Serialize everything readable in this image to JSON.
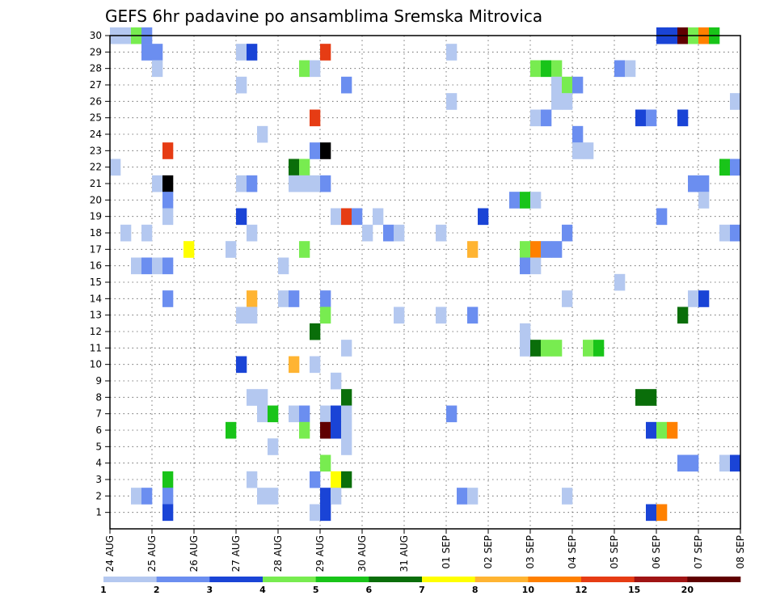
{
  "chart_data": {
    "type": "heatmap",
    "title": "GEFS 6hr padavine po ansamblima Sremska Mitrovica",
    "xlabel": "",
    "ylabel": "",
    "x_ticks": [
      "24 AUG",
      "25 AUG",
      "26 AUG",
      "27 AUG",
      "28 AUG",
      "29 AUG",
      "30 AUG",
      "31 AUG",
      "01 SEP",
      "02 SEP",
      "03 SEP",
      "04 SEP",
      "05 SEP",
      "06 SEP",
      "07 SEP",
      "08 SEP"
    ],
    "y_ticks": [
      1,
      2,
      3,
      4,
      5,
      6,
      7,
      8,
      9,
      10,
      11,
      12,
      13,
      14,
      15,
      16,
      17,
      18,
      19,
      20,
      21,
      22,
      23,
      24,
      25,
      26,
      27,
      28,
      29,
      30
    ],
    "x_range": [
      0,
      60
    ],
    "y_range": [
      0,
      30
    ],
    "grid": true,
    "legend_placement": "bottom",
    "legend": {
      "levels": [
        1,
        2,
        3,
        4,
        5,
        6,
        7,
        8,
        10,
        12,
        15,
        20
      ],
      "colors": [
        "#b4c8f0",
        "#6b8ef0",
        "#1a44d6",
        "#78ec50",
        "#19c419",
        "#0a6e0a",
        "#ffff00",
        "#ffb432",
        "#ff8000",
        "#e63c14",
        "#a01414",
        "#600000"
      ]
    },
    "points": [
      [
        0,
        1,
        30
      ],
      [
        1,
        1,
        30
      ],
      [
        2,
        4,
        30
      ],
      [
        3,
        2,
        30
      ],
      [
        52,
        3,
        30
      ],
      [
        53,
        3,
        30
      ],
      [
        54,
        12,
        30
      ],
      [
        55,
        4,
        30
      ],
      [
        56,
        9,
        30
      ],
      [
        57,
        5,
        30
      ],
      [
        3,
        2,
        29
      ],
      [
        4,
        2,
        29
      ],
      [
        12,
        1,
        29
      ],
      [
        13,
        3,
        29
      ],
      [
        20,
        10,
        29
      ],
      [
        32,
        1,
        29
      ],
      [
        4,
        1,
        28
      ],
      [
        18,
        4,
        28
      ],
      [
        19,
        1,
        28
      ],
      [
        40,
        4,
        28
      ],
      [
        41,
        5,
        28
      ],
      [
        42,
        4,
        28
      ],
      [
        48,
        2,
        28
      ],
      [
        49,
        1,
        28
      ],
      [
        12,
        1,
        27
      ],
      [
        22,
        2,
        27
      ],
      [
        42,
        1,
        27
      ],
      [
        43,
        4,
        27
      ],
      [
        44,
        2,
        27
      ],
      [
        32,
        1,
        26
      ],
      [
        42,
        1,
        26
      ],
      [
        43,
        1,
        26
      ],
      [
        59,
        1,
        26
      ],
      [
        19,
        10,
        25
      ],
      [
        40,
        1,
        25
      ],
      [
        41,
        2,
        25
      ],
      [
        50,
        3,
        25
      ],
      [
        51,
        2,
        25
      ],
      [
        54,
        3,
        25
      ],
      [
        14,
        1,
        24
      ],
      [
        44,
        2,
        24
      ],
      [
        5,
        10,
        23
      ],
      [
        19,
        2,
        23
      ],
      [
        20,
        14,
        23
      ],
      [
        44,
        1,
        23
      ],
      [
        45,
        1,
        23
      ],
      [
        0,
        1,
        22
      ],
      [
        17,
        6,
        22
      ],
      [
        18,
        4,
        22
      ],
      [
        58,
        5,
        22
      ],
      [
        59,
        2,
        22
      ],
      [
        4,
        1,
        21
      ],
      [
        5,
        14,
        21
      ],
      [
        12,
        1,
        21
      ],
      [
        13,
        2,
        21
      ],
      [
        17,
        1,
        21
      ],
      [
        18,
        1,
        21
      ],
      [
        19,
        1,
        21
      ],
      [
        20,
        2,
        21
      ],
      [
        55,
        2,
        21
      ],
      [
        56,
        2,
        21
      ],
      [
        5,
        2,
        20
      ],
      [
        38,
        2,
        20
      ],
      [
        39,
        5,
        20
      ],
      [
        40,
        1,
        20
      ],
      [
        56,
        1,
        20
      ],
      [
        5,
        1,
        19
      ],
      [
        12,
        3,
        19
      ],
      [
        21,
        1,
        19
      ],
      [
        22,
        10,
        19
      ],
      [
        23,
        2,
        19
      ],
      [
        25,
        1,
        19
      ],
      [
        35,
        3,
        19
      ],
      [
        52,
        2,
        19
      ],
      [
        1,
        1,
        18
      ],
      [
        3,
        1,
        18
      ],
      [
        13,
        1,
        18
      ],
      [
        24,
        1,
        18
      ],
      [
        26,
        2,
        18
      ],
      [
        27,
        1,
        18
      ],
      [
        31,
        1,
        18
      ],
      [
        43,
        2,
        18
      ],
      [
        58,
        1,
        18
      ],
      [
        59,
        2,
        18
      ],
      [
        7,
        7,
        17
      ],
      [
        11,
        1,
        17
      ],
      [
        18,
        4,
        17
      ],
      [
        34,
        8,
        17
      ],
      [
        39,
        4,
        17
      ],
      [
        40,
        9,
        17
      ],
      [
        41,
        2,
        17
      ],
      [
        42,
        2,
        17
      ],
      [
        2,
        1,
        16
      ],
      [
        3,
        2,
        16
      ],
      [
        4,
        1,
        16
      ],
      [
        5,
        2,
        16
      ],
      [
        16,
        1,
        16
      ],
      [
        39,
        2,
        16
      ],
      [
        40,
        1,
        16
      ],
      [
        48,
        1,
        15
      ],
      [
        5,
        2,
        14
      ],
      [
        13,
        8,
        14
      ],
      [
        16,
        1,
        14
      ],
      [
        17,
        2,
        14
      ],
      [
        20,
        2,
        14
      ],
      [
        43,
        1,
        14
      ],
      [
        55,
        1,
        14
      ],
      [
        56,
        3,
        14
      ],
      [
        12,
        1,
        13
      ],
      [
        13,
        1,
        13
      ],
      [
        20,
        4,
        13
      ],
      [
        27,
        1,
        13
      ],
      [
        31,
        1,
        13
      ],
      [
        34,
        2,
        13
      ],
      [
        54,
        6,
        13
      ],
      [
        19,
        6,
        12
      ],
      [
        39,
        1,
        12
      ],
      [
        22,
        1,
        11
      ],
      [
        39,
        1,
        11
      ],
      [
        40,
        6,
        11
      ],
      [
        41,
        4,
        11
      ],
      [
        42,
        4,
        11
      ],
      [
        45,
        4,
        11
      ],
      [
        46,
        5,
        11
      ],
      [
        12,
        3,
        10
      ],
      [
        17,
        8,
        10
      ],
      [
        19,
        1,
        10
      ],
      [
        21,
        1,
        9
      ],
      [
        13,
        1,
        8
      ],
      [
        14,
        1,
        8
      ],
      [
        22,
        6,
        8
      ],
      [
        50,
        6,
        8
      ],
      [
        51,
        6,
        8
      ],
      [
        14,
        1,
        7
      ],
      [
        15,
        5,
        7
      ],
      [
        17,
        1,
        7
      ],
      [
        18,
        2,
        7
      ],
      [
        20,
        1,
        7
      ],
      [
        21,
        3,
        7
      ],
      [
        22,
        1,
        7
      ],
      [
        32,
        2,
        7
      ],
      [
        11,
        5,
        6
      ],
      [
        18,
        4,
        6
      ],
      [
        20,
        12,
        6
      ],
      [
        21,
        3,
        6
      ],
      [
        22,
        1,
        6
      ],
      [
        51,
        3,
        6
      ],
      [
        52,
        4,
        6
      ],
      [
        53,
        9,
        6
      ],
      [
        15,
        1,
        5
      ],
      [
        22,
        1,
        5
      ],
      [
        20,
        4,
        4
      ],
      [
        54,
        2,
        4
      ],
      [
        55,
        2,
        4
      ],
      [
        58,
        1,
        4
      ],
      [
        59,
        3,
        4
      ],
      [
        5,
        5,
        3
      ],
      [
        13,
        1,
        3
      ],
      [
        19,
        2,
        3
      ],
      [
        21,
        7,
        3
      ],
      [
        22,
        6,
        3
      ],
      [
        2,
        1,
        2
      ],
      [
        3,
        2,
        2
      ],
      [
        5,
        2,
        2
      ],
      [
        14,
        1,
        2
      ],
      [
        15,
        1,
        2
      ],
      [
        20,
        3,
        2
      ],
      [
        21,
        1,
        2
      ],
      [
        33,
        2,
        2
      ],
      [
        34,
        1,
        2
      ],
      [
        43,
        1,
        2
      ],
      [
        5,
        3,
        1
      ],
      [
        19,
        1,
        1
      ],
      [
        20,
        3,
        1
      ],
      [
        51,
        3,
        1
      ],
      [
        52,
        9,
        1
      ]
    ]
  }
}
